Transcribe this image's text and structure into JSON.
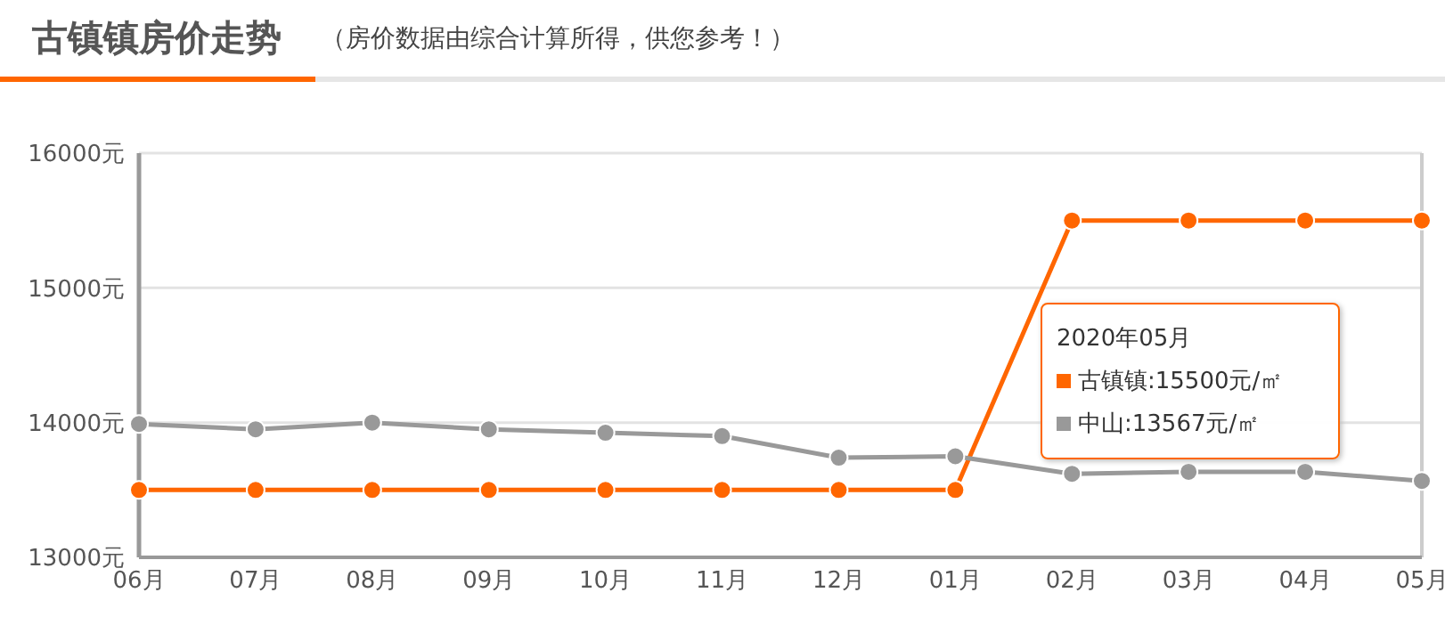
{
  "chart_data": {
    "type": "line",
    "title": "古镇镇房价走势",
    "subtitle": "（房价数据由综合计算所得，供您参考！）",
    "categories": [
      "06月",
      "07月",
      "08月",
      "09月",
      "10月",
      "11月",
      "12月",
      "01月",
      "02月",
      "03月",
      "04月",
      "05月"
    ],
    "series": [
      {
        "color": "#ff6600",
        "values": [
          13500,
          13500,
          13500,
          13500,
          13500,
          13500,
          13500,
          13500,
          15500,
          15500,
          15500,
          15500
        ]
      },
      {
        "color": "#999999",
        "values": [
          13990,
          13950,
          14000,
          13950,
          13925,
          13900,
          13740,
          13750,
          13620,
          13635,
          13635,
          13567
        ]
      }
    ],
    "ylim": [
      13000,
      16000
    ],
    "yticks": [
      {
        "value": 13000,
        "label": "13000元"
      },
      {
        "value": 14000,
        "label": "14000元"
      },
      {
        "value": 15000,
        "label": "15000元"
      },
      {
        "value": 16000,
        "label": "16000元"
      }
    ],
    "grid": "y",
    "marker": "circle",
    "line_style": "solid",
    "legend": false,
    "ref_lines": [
      {
        "axis": "x",
        "value": "05月",
        "color": "#cccccc"
      }
    ],
    "annotations": [
      "2020年05月",
      "古镇镇:15500元/㎡",
      "中山:13567元/㎡"
    ]
  }
}
